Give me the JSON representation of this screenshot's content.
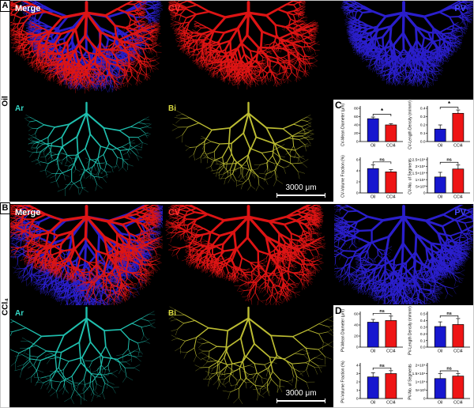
{
  "colors": {
    "cv": "#dd1414",
    "pv": "#2a1ecb",
    "ar": "#1fbfae",
    "bi": "#bcbc32",
    "merge_label": "#ffffff",
    "cv_label": "#ff3232",
    "pv_label": "#4646ff",
    "ar_label": "#35d8c6",
    "bi_label": "#d8d840",
    "oil_bar": "#1717cf",
    "ccl4_bar": "#ee1515",
    "scale_text": "#ffffff"
  },
  "panel_a": {
    "letter": "A",
    "group_label": "Oil",
    "tiles": {
      "merge": "Merge",
      "cv": "CV",
      "pv": "PV",
      "ar": "Ar",
      "bi": "Bi"
    },
    "scale_bar": "3000 μm"
  },
  "panel_b": {
    "letter": "B",
    "group_label": "CCl₄",
    "tiles": {
      "merge": "Merge",
      "cv": "CV",
      "pv": "PV",
      "ar": "Ar",
      "bi": "Bi"
    },
    "scale_bar": "3000 μm"
  },
  "panel_c": {
    "letter": "C"
  },
  "panel_d": {
    "letter": "D"
  },
  "chart_data": [
    {
      "panel": "C",
      "type": "bar",
      "ylabel": "CV-Mean Diameter (μm)",
      "categories": [
        "Oil",
        "CCl4"
      ],
      "values": [
        55,
        40
      ],
      "errors": [
        4,
        3
      ],
      "significance": "*",
      "ylim": [
        0,
        80
      ],
      "yticks": [
        0,
        20,
        40,
        60,
        80
      ],
      "ytick_labels": [
        "0",
        "20",
        "40",
        "60",
        "80"
      ]
    },
    {
      "panel": "C",
      "type": "bar",
      "ylabel": "CV-Length Density (m/mm³)",
      "categories": [
        "Oil",
        "CCl4"
      ],
      "values": [
        0.15,
        0.34
      ],
      "errors": [
        0.05,
        0.04
      ],
      "significance": "*",
      "ylim": [
        0,
        0.4
      ],
      "yticks": [
        0,
        0.1,
        0.2,
        0.3,
        0.4
      ],
      "ytick_labels": [
        "0.0",
        "0.1",
        "0.2",
        "0.3",
        "0.4"
      ]
    },
    {
      "panel": "C",
      "type": "bar",
      "ylabel": "CV-Volume Fraction (%)",
      "categories": [
        "Oil",
        "CCl4"
      ],
      "values": [
        4.4,
        3.8
      ],
      "errors": [
        0.7,
        0.4
      ],
      "significance": "ns",
      "ylim": [
        0,
        6
      ],
      "yticks": [
        0,
        2,
        4,
        6
      ],
      "ytick_labels": [
        "0",
        "2",
        "4",
        "6"
      ]
    },
    {
      "panel": "C",
      "type": "bar",
      "ylabel": "CV-No. of Segments",
      "categories": [
        "Oil",
        "CCl4"
      ],
      "values": [
        12000,
        18000
      ],
      "errors": [
        3500,
        3000
      ],
      "significance": "ns",
      "ylim": [
        0,
        25000
      ],
      "yticks": [
        0,
        5000,
        10000,
        15000,
        20000,
        25000
      ],
      "ytick_labels": [
        "0",
        "5×10³",
        "1×10⁴",
        "1.5×10⁴",
        "2×10⁴",
        "2.5×10⁴"
      ]
    },
    {
      "panel": "D",
      "type": "bar",
      "ylabel": "PV-Mean Diameter (μm)",
      "categories": [
        "Oil",
        "CCl4"
      ],
      "values": [
        45,
        48
      ],
      "errors": [
        5,
        8
      ],
      "significance": "ns",
      "ylim": [
        0,
        60
      ],
      "yticks": [
        0,
        20,
        40,
        60
      ],
      "ytick_labels": [
        "0",
        "20",
        "40",
        "60"
      ]
    },
    {
      "panel": "D",
      "type": "bar",
      "ylabel": "PV-Length Density (m/mm³)",
      "categories": [
        "Oil",
        "CCl4"
      ],
      "values": [
        0.31,
        0.34
      ],
      "errors": [
        0.07,
        0.09
      ],
      "significance": "ns",
      "ylim": [
        0,
        0.5
      ],
      "yticks": [
        0,
        0.1,
        0.2,
        0.3,
        0.4,
        0.5
      ],
      "ytick_labels": [
        "0.0",
        "0.1",
        "0.2",
        "0.3",
        "0.4",
        "0.5"
      ]
    },
    {
      "panel": "D",
      "type": "bar",
      "ylabel": "PV-Volume Fraction (%)",
      "categories": [
        "Oil",
        "CCl4"
      ],
      "values": [
        2.6,
        3.0
      ],
      "errors": [
        0.5,
        0.35
      ],
      "significance": "ns",
      "ylim": [
        0,
        4
      ],
      "yticks": [
        0,
        1,
        2,
        3,
        4
      ],
      "ytick_labels": [
        "0",
        "1",
        "2",
        "3",
        "4"
      ]
    },
    {
      "panel": "D",
      "type": "bar",
      "ylabel": "PV-No. of Segments",
      "categories": [
        "Oil",
        "CCl4"
      ],
      "values": [
        12000,
        13500
      ],
      "errors": [
        3000,
        1500
      ],
      "significance": "ns",
      "ylim": [
        0,
        20000
      ],
      "yticks": [
        0,
        5000,
        10000,
        15000,
        20000
      ],
      "ytick_labels": [
        "0",
        "5×10³",
        "1×10⁴",
        "1.5×10⁴",
        "2×10⁴"
      ]
    }
  ]
}
